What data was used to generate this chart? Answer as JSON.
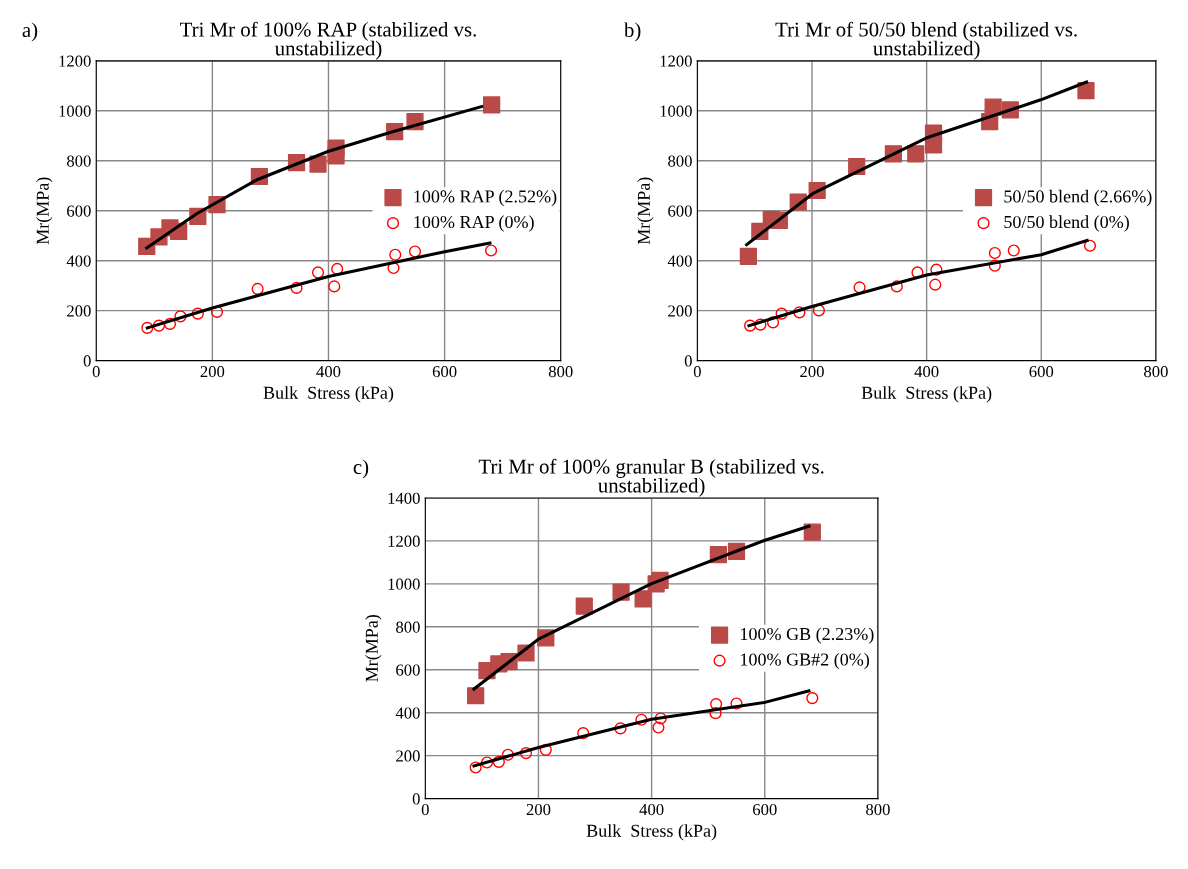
{
  "chart_data": [
    {
      "type": "scatter",
      "title": "Tri Mr of 100% RAP (stabilized vs.\nunstabilized)",
      "annotations": [
        "a)"
      ],
      "xlabel": "Bulk  Stress (kPa)",
      "ylabel": "Mr(MPa)",
      "xlim": [
        0,
        800
      ],
      "xticks": [
        0,
        200,
        400,
        600,
        800
      ],
      "ylim": [
        0,
        1200
      ],
      "yticks": [
        0,
        200,
        400,
        600,
        800,
        1000,
        1200
      ],
      "grid": true,
      "legend": "right",
      "series": [
        {
          "name": "100% RAP (2.52%)",
          "color": "#b94a48",
          "marker": "square",
          "x": [
            87,
            108,
            127,
            142,
            175,
            208,
            281,
            345,
            382,
            413,
            413,
            514,
            549,
            681
          ],
          "values": [
            457,
            495,
            531,
            517,
            577,
            624,
            737,
            793,
            787,
            851,
            820,
            917,
            957,
            1024
          ]
        },
        {
          "name": "100% RAP (0%)",
          "color": "#ff0000",
          "marker": "circle",
          "x": [
            88,
            108,
            127,
            145,
            175,
            208,
            278,
            345,
            382,
            415,
            410,
            512,
            515,
            549,
            680
          ],
          "values": [
            131,
            140,
            147,
            177,
            188,
            195,
            287,
            291,
            353,
            367,
            297,
            371,
            424,
            437,
            441
          ]
        },
        {
          "type": "line",
          "color": "#000000",
          "marker": "none",
          "x": [
            87,
            173,
            277,
            399,
            506,
            664
          ],
          "values": [
            451,
            588,
            724,
            837,
            913,
            1017
          ]
        },
        {
          "type": "line",
          "color": "#000000",
          "marker": "none",
          "x": [
            88,
            200,
            400,
            600,
            678
          ],
          "values": [
            131,
            211,
            337,
            436,
            471
          ]
        }
      ]
    },
    {
      "type": "scatter",
      "title": "Tri Mr of 50/50 blend (stabilized vs.\nunstabilized)",
      "annotations": [
        "b)"
      ],
      "xlabel": "Bulk  Stress (kPa)",
      "ylabel": "Mr(MPa)",
      "xlim": [
        0,
        800
      ],
      "xticks": [
        0,
        200,
        400,
        600,
        800
      ],
      "ylim": [
        0,
        1200
      ],
      "yticks": [
        0,
        200,
        400,
        600,
        800,
        1000,
        1200
      ],
      "grid": true,
      "legend": "right",
      "series": [
        {
          "name": "50/50 blend (2.66%)",
          "color": "#b94a48",
          "marker": "square",
          "x": [
            89,
            109,
            129,
            143,
            176,
            209,
            278,
            342,
            381,
            412,
            412,
            510,
            516,
            546,
            678
          ],
          "values": [
            417,
            517,
            564,
            561,
            635,
            681,
            777,
            828,
            828,
            864,
            911,
            957,
            1015,
            1004,
            1081
          ]
        },
        {
          "name": "50/50 blend (0%)",
          "color": "#ff0000",
          "marker": "circle",
          "x": [
            92,
            110,
            132,
            147,
            178,
            212,
            283,
            348,
            384,
            417,
            415,
            519,
            519,
            552,
            685
          ],
          "values": [
            140,
            144,
            153,
            188,
            193,
            201,
            293,
            297,
            353,
            364,
            304,
            431,
            380,
            441,
            460
          ]
        },
        {
          "type": "line",
          "color": "#000000",
          "marker": "none",
          "x": [
            86,
            201,
            399,
            599,
            679
          ],
          "values": [
            464,
            668,
            891,
            1044,
            1115
          ]
        },
        {
          "type": "line",
          "color": "#000000",
          "marker": "none",
          "x": [
            90,
            200,
            400,
            600,
            680
          ],
          "values": [
            140,
            217,
            343,
            424,
            481
          ]
        }
      ]
    },
    {
      "type": "scatter",
      "title": "Tri Mr of 100% granular B (stabilized vs.\nunstabilized)",
      "annotations": [
        "c)"
      ],
      "xlabel": "Bulk  Stress (kPa)",
      "ylabel": "Mr(MPa)",
      "xlim": [
        0,
        800
      ],
      "xticks": [
        0,
        200,
        400,
        600,
        800
      ],
      "ylim": [
        0,
        1400
      ],
      "yticks": [
        0,
        200,
        400,
        600,
        800,
        1000,
        1200,
        1400
      ],
      "grid": true,
      "legend": "right",
      "series": [
        {
          "name": "100% GB (2.23%)",
          "color": "#b94a48",
          "marker": "square",
          "x": [
            89,
            109,
            130,
            148,
            178,
            213,
            281,
            346,
            385,
            408,
            415,
            518,
            550,
            684
          ],
          "values": [
            479,
            596,
            627,
            638,
            678,
            748,
            896,
            961,
            930,
            1000,
            1016,
            1136,
            1151,
            1241
          ]
        },
        {
          "name": "100% GB#2 (0%)",
          "color": "#ff0000",
          "marker": "circle",
          "x": [
            89,
            109,
            130,
            146,
            178,
            213,
            279,
            345,
            382,
            416,
            412,
            514,
            513,
            550,
            684
          ],
          "values": [
            145,
            168,
            171,
            204,
            212,
            227,
            305,
            327,
            367,
            373,
            331,
            440,
            398,
            443,
            468
          ]
        },
        {
          "type": "line",
          "color": "#000000",
          "marker": "none",
          "x": [
            86,
            201,
            399,
            599,
            678
          ],
          "values": [
            510,
            744,
            1000,
            1202,
            1268
          ]
        },
        {
          "type": "line",
          "color": "#000000",
          "marker": "none",
          "x": [
            86,
            200,
            400,
            600,
            678
          ],
          "values": [
            152,
            238,
            370,
            448,
            502
          ]
        }
      ]
    }
  ]
}
